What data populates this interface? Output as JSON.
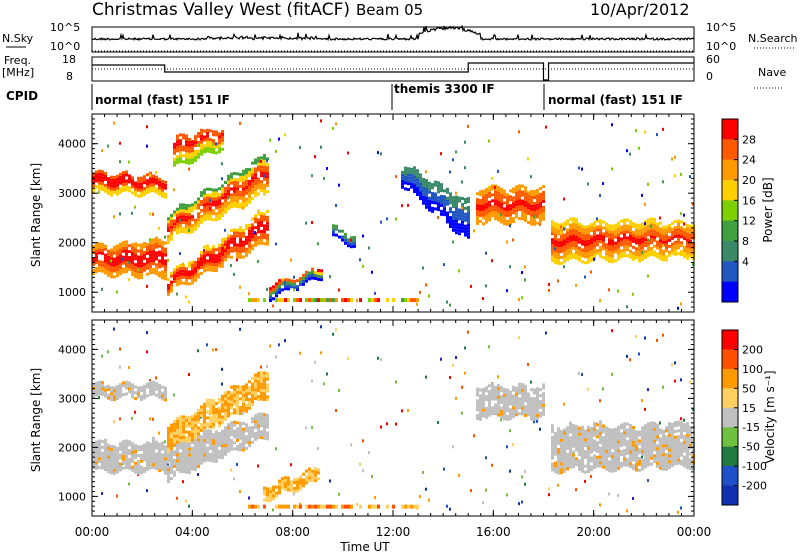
{
  "header": {
    "title": "Christmas Valley West (fitACF)",
    "beam": "Beam 05",
    "date": "10/Apr/2012"
  },
  "panels": {
    "nsky_label": "N.Sky",
    "nsky_ticks": [
      "10^5",
      "10^0"
    ],
    "nsearch_label": "N.Search",
    "nsearch_ticks": [
      "10^5",
      "10^0"
    ],
    "freq_label": "Freq.",
    "freq_unit": "[MHz]",
    "freq_ticks": [
      "18",
      "8"
    ],
    "nave_label": "Nave",
    "nave_ticks": [
      "60",
      "0"
    ],
    "cpid_label": "CPID",
    "cpid_segments": [
      "normal (fast) 151 IF",
      "themis 3300 IF",
      "normal (fast) 151 IF"
    ]
  },
  "colors": {
    "power": [
      "#0000ff",
      "#2256c0",
      "#3a8a6a",
      "#40a040",
      "#7cd000",
      "#ffd000",
      "#ff9a00",
      "#ff5a00",
      "#ff0000"
    ],
    "velocity": [
      "#1030b0",
      "#2050c8",
      "#207a40",
      "#70c040",
      "#c0c0c0",
      "#ffd060",
      "#ff9a00",
      "#ff5000",
      "#ff0000"
    ],
    "ground_scatter": "#c0c0c0"
  },
  "chart_data": [
    {
      "type": "heatmap",
      "name": "power",
      "ylabel": "Slant Range [km]",
      "colorbar_label": "Power [dB]",
      "colorbar_ticks": [
        "28",
        "24",
        "20",
        "16",
        "12",
        "8",
        "4"
      ],
      "y_ticks": [
        "4000",
        "3000",
        "2000",
        "1000"
      ],
      "ylim": [
        600,
        4600
      ],
      "xlim": [
        0,
        24
      ]
    },
    {
      "type": "heatmap",
      "name": "velocity",
      "ylabel": "Slant Range [km]",
      "colorbar_label": "Velocity [m s⁻¹]",
      "colorbar_ticks": [
        "200",
        "100",
        "50",
        "15",
        "-15",
        "-50",
        "-100",
        "-200"
      ],
      "y_ticks": [
        "4000",
        "3000",
        "2000",
        "1000"
      ],
      "ylim": [
        600,
        4600
      ],
      "xlim": [
        0,
        24
      ]
    }
  ],
  "xaxis": {
    "label": "Time UT",
    "ticks": [
      "00:00",
      "04:00",
      "08:00",
      "12:00",
      "16:00",
      "20:00",
      "00:00"
    ]
  }
}
